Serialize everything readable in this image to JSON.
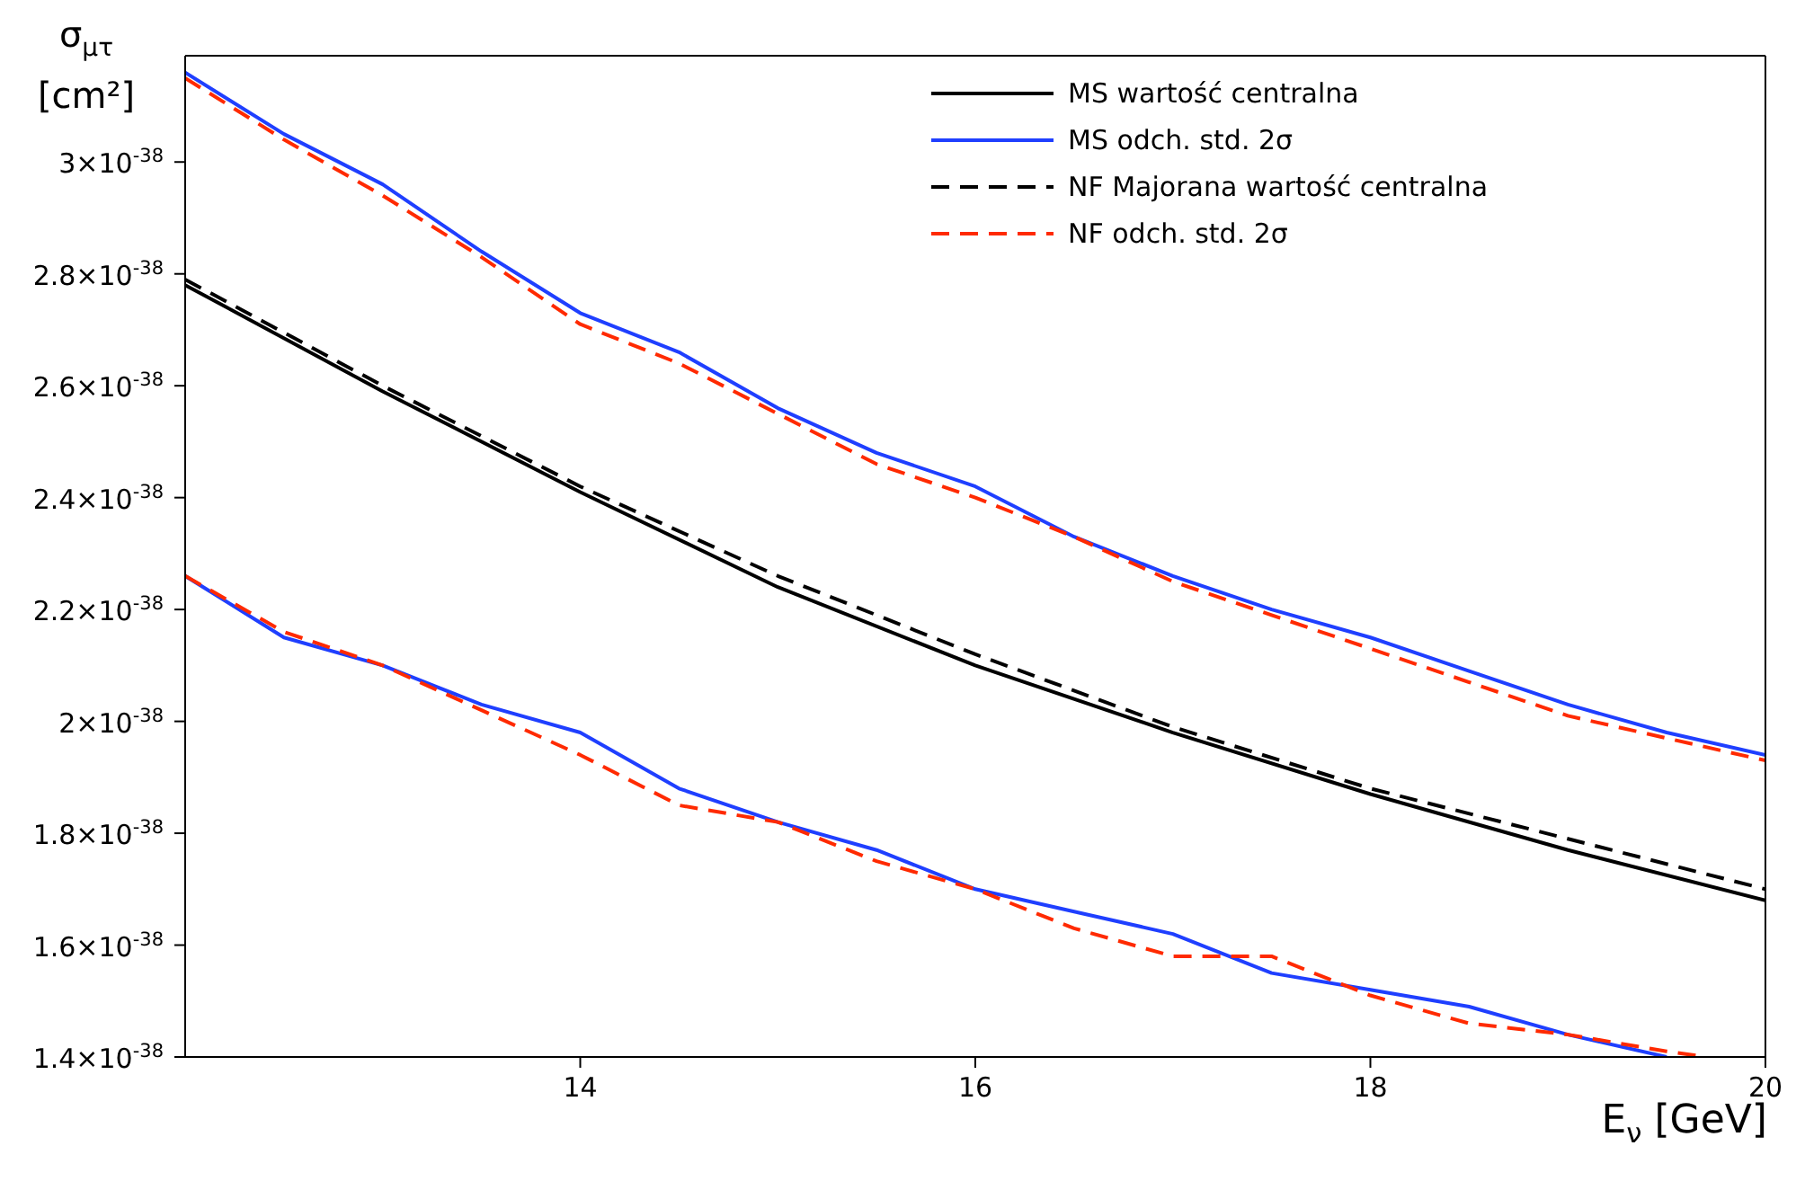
{
  "chart_data": {
    "type": "line",
    "xlabel": "E$_{ν}$ [GeV]",
    "ylabel": "σ$_{μτ}$ [cm²]",
    "xlim": [
      12,
      20
    ],
    "xticks": [
      14,
      16,
      18,
      20
    ],
    "ylim": [
      1.4e-38,
      3.19e-38
    ],
    "yticks": [
      {
        "value": 1.4e-38,
        "label": "1.4×10$^{-38}$"
      },
      {
        "value": 1.6e-38,
        "label": "1.6×10$^{-38}$"
      },
      {
        "value": 1.8e-38,
        "label": "1.8×10$^{-38}$"
      },
      {
        "value": 2e-38,
        "label": "2×10$^{-38}$"
      },
      {
        "value": 2.2e-38,
        "label": "2.2×10$^{-38}$"
      },
      {
        "value": 2.4e-38,
        "label": "2.4×10$^{-38}$"
      },
      {
        "value": 2.6e-38,
        "label": "2.6×10$^{-38}$"
      },
      {
        "value": 2.8e-38,
        "label": "2.8×10$^{-38}$"
      },
      {
        "value": 3e-38,
        "label": "3×10$^{-38}$"
      }
    ],
    "legend": "top right",
    "marker": "none",
    "series": [
      {
        "name": "MS wartość centralna",
        "color": "#000000",
        "line_style": "solid",
        "x": [
          12,
          13,
          14,
          15,
          16,
          17,
          18,
          19,
          20
        ],
        "values": [
          2.78e-38,
          2.59e-38,
          2.41e-38,
          2.24e-38,
          2.1e-38,
          1.98e-38,
          1.87e-38,
          1.77e-38,
          1.68e-38
        ]
      },
      {
        "name": "MS odch. std. 2σ",
        "color": "#1f3fff",
        "line_style": "solid",
        "x": [
          12,
          12.5,
          13,
          13.5,
          14,
          14.5,
          15,
          15.5,
          16,
          16.5,
          17,
          17.5,
          18,
          18.5,
          19,
          19.5,
          20
        ],
        "values": [
          3.16e-38,
          3.05e-38,
          2.96e-38,
          2.84e-38,
          2.73e-38,
          2.66e-38,
          2.56e-38,
          2.48e-38,
          2.42e-38,
          2.33e-38,
          2.26e-38,
          2.2e-38,
          2.15e-38,
          2.09e-38,
          2.03e-38,
          1.98e-38,
          1.94e-38
        ]
      },
      {
        "name": "NF Majorana wartość centralna",
        "color": "#000000",
        "line_style": "dashed",
        "x": [
          12,
          13,
          14,
          15,
          16,
          17,
          18,
          19,
          20
        ],
        "values": [
          2.79e-38,
          2.6e-38,
          2.42e-38,
          2.26e-38,
          2.12e-38,
          1.99e-38,
          1.88e-38,
          1.79e-38,
          1.7e-38
        ]
      },
      {
        "name": "NF odch. std. 2σ",
        "color": "#ff2a00",
        "line_style": "dashed",
        "x": [
          12,
          12.5,
          13,
          13.5,
          14,
          14.5,
          15,
          15.5,
          16,
          16.5,
          17,
          17.5,
          18,
          18.5,
          19,
          19.5,
          20
        ],
        "values": [
          3.15e-38,
          3.04e-38,
          2.94e-38,
          2.83e-38,
          2.71e-38,
          2.64e-38,
          2.55e-38,
          2.46e-38,
          2.4e-38,
          2.33e-38,
          2.25e-38,
          2.19e-38,
          2.13e-38,
          2.07e-38,
          2.01e-38,
          1.97e-38,
          1.93e-38
        ]
      },
      {
        "color": "#1f3fff",
        "line_style": "solid",
        "x": [
          12,
          12.5,
          13,
          13.5,
          14,
          14.5,
          15,
          15.5,
          16,
          16.5,
          17,
          17.5,
          18,
          18.5,
          19,
          19.5
        ],
        "values": [
          2.26e-38,
          2.15e-38,
          2.1e-38,
          2.03e-38,
          1.98e-38,
          1.88e-38,
          1.82e-38,
          1.77e-38,
          1.7e-38,
          1.66e-38,
          1.62e-38,
          1.55e-38,
          1.52e-38,
          1.49e-38,
          1.44e-38,
          1.4e-38
        ]
      },
      {
        "color": "#ff2a00",
        "line_style": "dashed",
        "x": [
          12,
          12.5,
          13,
          13.5,
          14,
          14.5,
          15,
          15.5,
          16,
          16.5,
          17,
          17.5,
          18,
          18.5,
          19,
          19.5,
          19.7
        ],
        "values": [
          2.26e-38,
          2.16e-38,
          2.1e-38,
          2.02e-38,
          1.94e-38,
          1.85e-38,
          1.82e-38,
          1.75e-38,
          1.7e-38,
          1.63e-38,
          1.58e-38,
          1.58e-38,
          1.51e-38,
          1.46e-38,
          1.44e-38,
          1.41e-38,
          1.4e-38
        ]
      }
    ]
  }
}
